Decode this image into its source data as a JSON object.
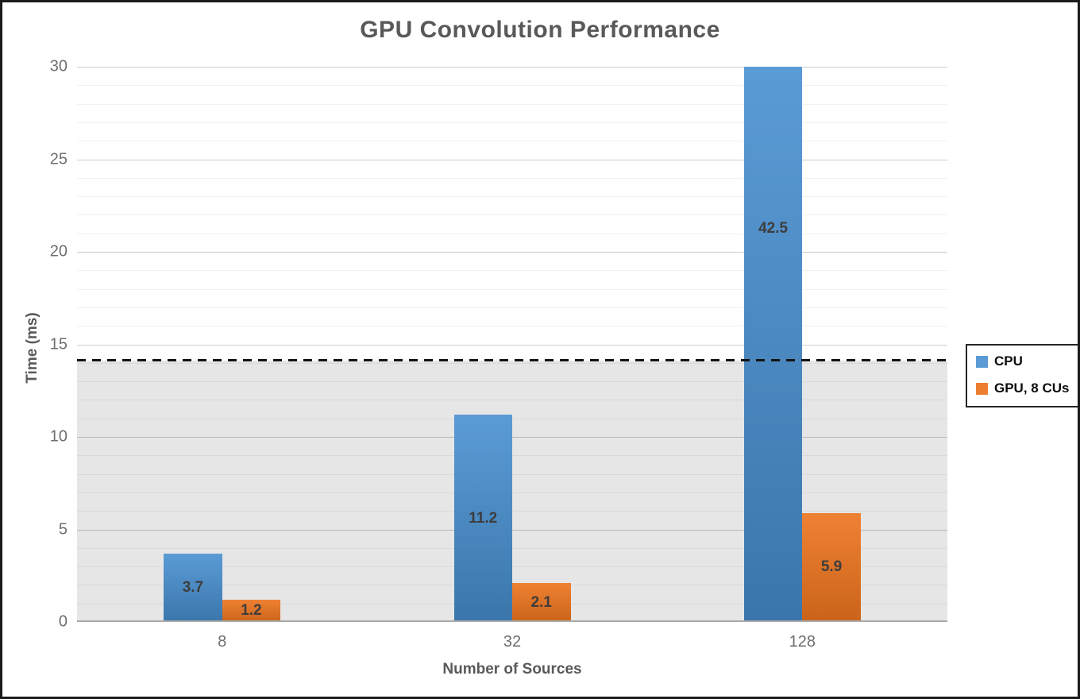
{
  "title": "GPU Convolution Performance",
  "axes": {
    "x_label": "Number of Sources",
    "y_label": "Time (ms)",
    "y_ticks": [
      "0",
      "5",
      "10",
      "15",
      "20",
      "25",
      "30"
    ],
    "x_ticks": [
      "8",
      "32",
      "128"
    ]
  },
  "legend": {
    "items": [
      {
        "label": "CPU",
        "color": "#5b9bd5"
      },
      {
        "label": "GPU, 8 CUs",
        "color": "#ed7d31"
      }
    ]
  },
  "colors": {
    "title_text": "#595959",
    "tick_text": "#6e6e6e",
    "bar_label_text": "#3d3d3d",
    "cpu_bar_top": "#5b9bd5",
    "cpu_bar_bottom": "#3a76ab",
    "gpu_bar_top": "#ef8133",
    "gpu_bar_bottom": "#ca641a",
    "shaded_band": "#e6e6e6",
    "threshold_line": "#141414",
    "frame_border": "#1b1b1b"
  },
  "chart_data": {
    "type": "bar",
    "title": "GPU Convolution Performance",
    "xlabel": "Number of Sources",
    "ylabel": "Time (ms)",
    "categories": [
      "8",
      "32",
      "128"
    ],
    "series": [
      {
        "name": "CPU",
        "values": [
          3.7,
          11.2,
          42.5
        ]
      },
      {
        "name": "GPU, 8 CUs",
        "values": [
          1.2,
          2.1,
          5.9
        ]
      }
    ],
    "value_labels": [
      [
        "3.7",
        "11.2",
        "42.5"
      ],
      [
        "1.2",
        "2.1",
        "5.9"
      ]
    ],
    "ylim": [
      0,
      30
    ],
    "ytick_step": 5,
    "minor_gridline_step": 1,
    "threshold_line_y": 14.1,
    "shaded_band": {
      "from": 0,
      "to": 14.1
    },
    "grid": true,
    "legend_position": "right",
    "legend_entries": [
      "CPU",
      "GPU, 8 CUs"
    ]
  }
}
